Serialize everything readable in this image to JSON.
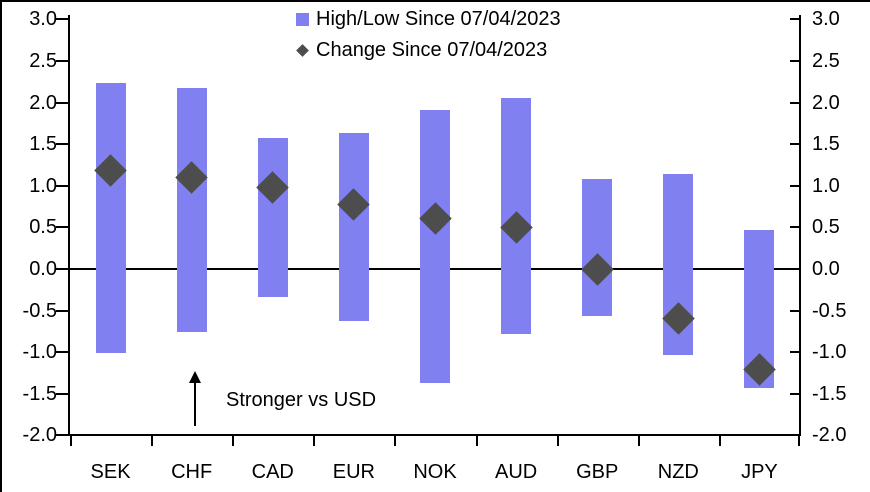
{
  "chart_data": {
    "type": "bar",
    "subtype": "high-low-range-with-diamond-markers",
    "title": "",
    "xlabel": "",
    "ylabel": "",
    "categories": [
      "SEK",
      "CHF",
      "CAD",
      "EUR",
      "NOK",
      "AUD",
      "GBP",
      "NZD",
      "JPY"
    ],
    "series": [
      {
        "name": "High/Low Since 07/04/2023",
        "type": "range-bar",
        "marker": "square",
        "high": [
          2.24,
          2.18,
          1.57,
          1.63,
          1.91,
          2.06,
          1.08,
          1.14,
          0.47
        ],
        "low": [
          -1.01,
          -0.76,
          -0.34,
          -0.62,
          -1.37,
          -0.78,
          -0.57,
          -1.03,
          -1.43
        ]
      },
      {
        "name": "Change Since 07/04/2023",
        "type": "scatter",
        "marker": "diamond",
        "values": [
          1.18,
          1.1,
          0.98,
          0.78,
          0.61,
          0.5,
          0.0,
          -0.6,
          -1.21
        ]
      }
    ],
    "ylim": [
      -2.0,
      3.0
    ],
    "ytick_step": 0.5,
    "yticks_left": [
      "3.0",
      "2.5",
      "2.0",
      "1.5",
      "1.0",
      "0.5",
      "0.0",
      "-0.5",
      "-1.0",
      "-1.5",
      "-2.0"
    ],
    "yticks_right": [
      "3.0",
      "2.5",
      "2.0",
      "1.5",
      "1.0",
      "0.5",
      "0.0",
      "-0.5",
      "-1.0",
      "-1.5",
      "-2.0"
    ],
    "grid": "none",
    "zero_line": true,
    "legend_position": "top-center",
    "annotation": {
      "text": "Stronger vs USD",
      "arrow_direction": "up"
    },
    "colors": {
      "bar": "#8080F0",
      "marker": "#4D4D4D",
      "axis": "#000000",
      "background": "#FFFFFF"
    }
  },
  "legend": {
    "items": [
      {
        "label": "High/Low Since 07/04/2023",
        "marker": "square"
      },
      {
        "label": "Change Since 07/04/2023",
        "marker": "diamond"
      }
    ]
  },
  "annotation": {
    "label": "Stronger vs USD"
  }
}
